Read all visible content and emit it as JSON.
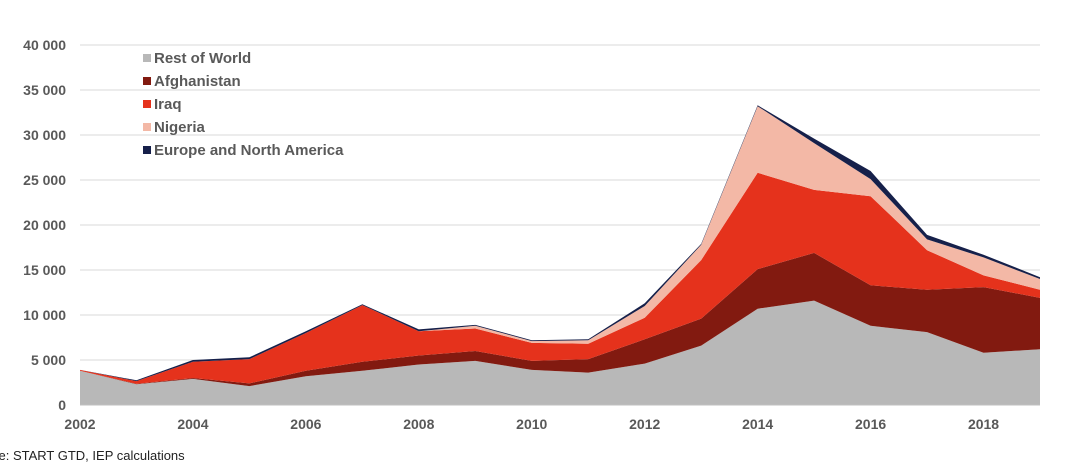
{
  "chart_data": {
    "type": "area",
    "stacked": true,
    "x": [
      2002,
      2003,
      2004,
      2005,
      2006,
      2007,
      2008,
      2009,
      2010,
      2011,
      2012,
      2013,
      2014,
      2015,
      2016,
      2017,
      2018,
      2019
    ],
    "x_tick_labels": [
      "2002",
      "2004",
      "2006",
      "2008",
      "2010",
      "2012",
      "2014",
      "2016",
      "2018"
    ],
    "ylim": [
      0,
      40000
    ],
    "y_tick_labels": [
      "0",
      "5 000",
      "10 000",
      "15 000",
      "20 000",
      "25 000",
      "30 000",
      "35 000",
      "40 000"
    ],
    "y_ticks": [
      0,
      5000,
      10000,
      15000,
      20000,
      25000,
      30000,
      35000,
      40000
    ],
    "grid": "horizontal",
    "legend_position": "top-left",
    "series": [
      {
        "name": "Rest of World",
        "color": "#b8b8b8",
        "values": [
          3800,
          2300,
          2900,
          2100,
          3200,
          3800,
          4500,
          4900,
          3900,
          3600,
          4600,
          6600,
          10700,
          11600,
          8800,
          8100,
          5800,
          6200
        ]
      },
      {
        "name": "Afghanistan",
        "color": "#821a10",
        "values": [
          0,
          50,
          100,
          300,
          600,
          1000,
          1000,
          1100,
          1000,
          1500,
          2700,
          3000,
          4400,
          5300,
          4500,
          4700,
          7300,
          5700
        ]
      },
      {
        "name": "Iraq",
        "color": "#e5321c",
        "values": [
          100,
          300,
          1800,
          2700,
          4200,
          6300,
          2700,
          2500,
          2000,
          1700,
          2400,
          6500,
          10700,
          7000,
          9900,
          4400,
          1300,
          900
        ]
      },
      {
        "name": "Nigeria",
        "color": "#f3b8a6",
        "values": [
          0,
          0,
          0,
          0,
          0,
          0,
          0,
          300,
          200,
          400,
          1300,
          1700,
          7400,
          5200,
          1900,
          1200,
          2000,
          1200
        ]
      },
      {
        "name": "Europe and North America",
        "color": "#16204a",
        "values": [
          0,
          100,
          200,
          200,
          200,
          100,
          200,
          100,
          100,
          100,
          300,
          100,
          100,
          500,
          900,
          500,
          300,
          200
        ]
      }
    ]
  },
  "source_text": "ce: START GTD, IEP calculations"
}
